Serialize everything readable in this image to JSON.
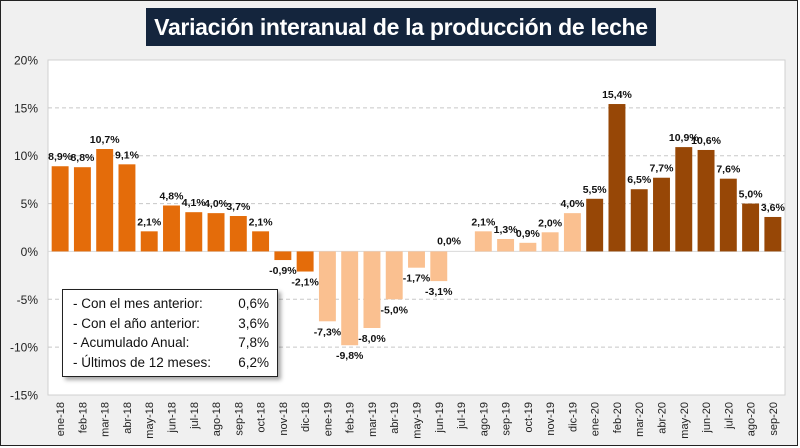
{
  "chart_data": {
    "type": "bar",
    "title": "Variación interanual de la producción de leche",
    "xlabel": "",
    "ylabel": "",
    "ylim": [
      -15,
      20
    ],
    "yticks": [
      20,
      15,
      10,
      5,
      0,
      -5,
      -10,
      -15
    ],
    "ytick_labels": [
      "20%",
      "15%",
      "10%",
      "5%",
      "0%",
      "-5%",
      "-10%",
      "-15%"
    ],
    "grid": "horizontal dashed",
    "categories": [
      "ene-18",
      "feb-18",
      "mar-18",
      "abr-18",
      "may-18",
      "jun-18",
      "jul-18",
      "ago-18",
      "sep-18",
      "oct-18",
      "nov-18",
      "dic-18",
      "ene-19",
      "feb-19",
      "mar-19",
      "abr-19",
      "may-19",
      "jun-19",
      "jul-19",
      "ago-19",
      "sep-19",
      "oct-19",
      "nov-19",
      "dic-19",
      "ene-20",
      "feb-20",
      "mar-20",
      "abr-20",
      "may-20",
      "jun-20",
      "jul-20",
      "ago-20",
      "sep-20"
    ],
    "values": [
      8.9,
      8.8,
      10.7,
      9.1,
      2.1,
      4.8,
      4.1,
      4.0,
      3.7,
      2.1,
      -0.9,
      -2.1,
      -7.3,
      -9.8,
      -8.0,
      -5.0,
      -1.7,
      -3.1,
      0.0,
      2.1,
      1.3,
      0.9,
      2.0,
      4.0,
      5.5,
      15.4,
      6.5,
      7.7,
      10.9,
      10.6,
      7.6,
      5.0,
      3.6
    ],
    "data_labels": [
      "8,9%",
      "8,8%",
      "10,7%",
      "9,1%",
      "2,1%",
      "4,8%",
      "4,1%",
      "4,0%",
      "3,7%",
      "2,1%",
      "-0,9%",
      "-2,1%",
      "-7,3%",
      "-9,8%",
      "-8,0%",
      "-5,0%",
      "-1,7%",
      "-3,1%",
      "0,0%",
      "2,1%",
      "1,3%",
      "0,9%",
      "2,0%",
      "4,0%",
      "5,5%",
      "15,4%",
      "6,5%",
      "7,7%",
      "10,9%",
      "10,6%",
      "7,6%",
      "5,0%",
      "3,6%"
    ],
    "series_colors": {
      "2018": "#e46c0a",
      "2019": "#fac090",
      "2020": "#974706"
    }
  },
  "summary": {
    "rows": [
      {
        "label": "- Con el mes anterior:",
        "value": "0,6%"
      },
      {
        "label": "- Con el año anterior:",
        "value": "3,6%"
      },
      {
        "label": "- Acumulado Anual:",
        "value": "7,8%"
      },
      {
        "label": "- Últimos de 12 meses:",
        "value": "6,2%"
      }
    ]
  }
}
